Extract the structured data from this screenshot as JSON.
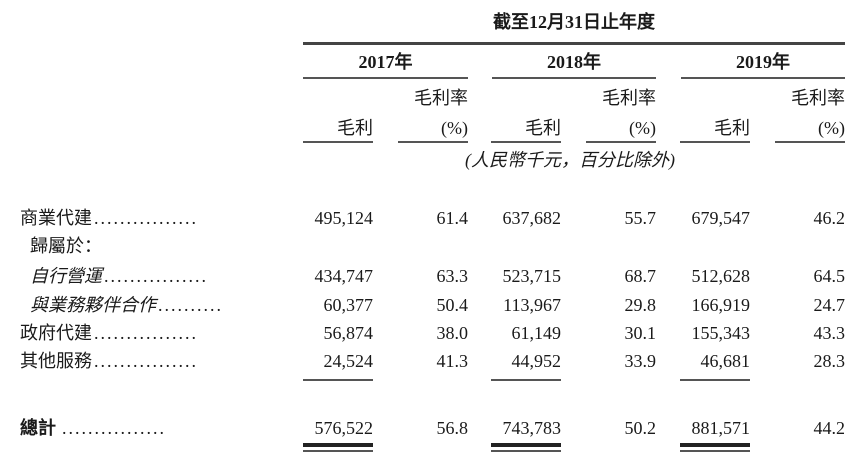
{
  "header": {
    "period_title": "截至12月31日止年度",
    "years": [
      "2017年",
      "2018年",
      "2019年"
    ],
    "col_gross_profit": "毛利",
    "col_margin_line1": "毛利率",
    "col_margin_line2": "(%)",
    "unit_note": "(人民幣千元，百分比除外)"
  },
  "rows": [
    {
      "label": "商業代建",
      "dots": "................",
      "indent": 0,
      "italic": false,
      "values": [
        "495,124",
        "61.4",
        "637,682",
        "55.7",
        "679,547",
        "46.2"
      ]
    },
    {
      "label": "歸屬於：",
      "dots": "",
      "indent": 1,
      "italic": false,
      "values": []
    },
    {
      "label": "自行營運",
      "dots": "................",
      "indent": 1,
      "italic": true,
      "values": [
        "434,747",
        "63.3",
        "523,715",
        "68.7",
        "512,628",
        "64.5"
      ]
    },
    {
      "label": "與業務夥伴合作",
      "dots": "..........",
      "indent": 1,
      "italic": true,
      "values": [
        "60,377",
        "50.4",
        "113,967",
        "29.8",
        "166,919",
        "24.7"
      ]
    },
    {
      "label": "政府代建",
      "dots": "................",
      "indent": 0,
      "italic": false,
      "values": [
        "56,874",
        "38.0",
        "61,149",
        "30.1",
        "155,343",
        "43.3"
      ]
    },
    {
      "label": "其他服務",
      "dots": "................",
      "indent": 0,
      "italic": false,
      "values": [
        "24,524",
        "41.3",
        "44,952",
        "33.9",
        "46,681",
        "28.3"
      ]
    }
  ],
  "total": {
    "label": "總計",
    "dots": " ................",
    "values": [
      "576,522",
      "56.8",
      "743,783",
      "50.2",
      "881,571",
      "44.2"
    ]
  }
}
